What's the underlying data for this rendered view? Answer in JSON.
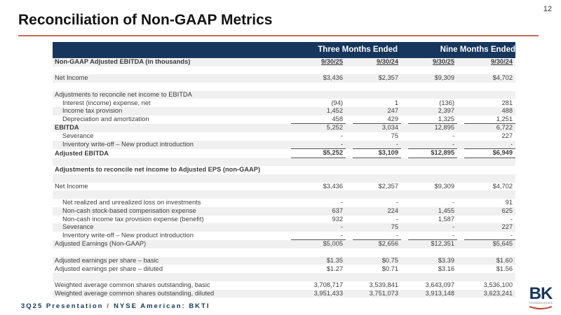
{
  "slide": {
    "page_number": "12",
    "title": "Reconciliation of Non-GAAP Metrics"
  },
  "table": {
    "group_headers": [
      {
        "label": "Three Months Ended"
      },
      {
        "label": "Nine Months Ended"
      }
    ],
    "column_dates": [
      "9/30/25",
      "9/30/24",
      "9/30/25",
      "9/30/24"
    ],
    "rows": [
      {
        "label": "Non-GAAP Adjusted EBITDA (in thousands)",
        "values": [
          "9/30/25",
          "9/30/24",
          "9/30/25",
          "9/30/24"
        ],
        "cls": "bold dates"
      },
      {
        "label": "",
        "values": [
          "",
          "",
          "",
          ""
        ],
        "cls": ""
      },
      {
        "label": "Net Income",
        "values": [
          "$3,436",
          "$2,357",
          "$9,309",
          "$4,702"
        ],
        "cls": ""
      },
      {
        "label": "",
        "values": [
          "",
          "",
          "",
          ""
        ],
        "cls": ""
      },
      {
        "label": "Adjustments to reconcile net income to EBITDA",
        "values": [
          "",
          "",
          "",
          ""
        ],
        "cls": ""
      },
      {
        "label": "Interest (income) expense, net",
        "values": [
          "(94)",
          "1",
          "(136)",
          "281"
        ],
        "cls": "indent"
      },
      {
        "label": "Income tax provision",
        "values": [
          "1,452",
          "247",
          "2,397",
          "488"
        ],
        "cls": "indent"
      },
      {
        "label": "Depreciation and amortization",
        "values": [
          "458",
          "429",
          "1,325",
          "1,251"
        ],
        "cls": "indent sum"
      },
      {
        "label": "EBITDA",
        "values": [
          "5,252",
          "3,034",
          "12,895",
          "6,722"
        ],
        "cls": "boldlabel"
      },
      {
        "label": "Severance",
        "values": [
          "-",
          "75",
          "-",
          "227"
        ],
        "cls": "indent"
      },
      {
        "label": "Inventory write-off – New product introduction",
        "values": [
          "-",
          "-",
          "-",
          "-"
        ],
        "cls": "indent sum"
      },
      {
        "label": "Adjusted EBITDA",
        "values": [
          "$5,252",
          "$3,109",
          "$12,895",
          "$6,949"
        ],
        "cls": "bold sum"
      },
      {
        "label": "",
        "values": [
          "",
          "",
          "",
          ""
        ],
        "cls": ""
      },
      {
        "label": "Adjustments to reconcile net income to Adjusted EPS (non-GAAP)",
        "values": [
          "",
          "",
          "",
          ""
        ],
        "cls": "boldlabel"
      },
      {
        "label": "",
        "values": [
          "",
          "",
          "",
          ""
        ],
        "cls": ""
      },
      {
        "label": "Net Income",
        "values": [
          "$3,436",
          "$2,357",
          "$9,309",
          "$4,702"
        ],
        "cls": ""
      },
      {
        "label": "",
        "values": [
          "",
          "",
          "",
          ""
        ],
        "cls": ""
      },
      {
        "label": "Net realized and unrealized loss on investments",
        "values": [
          "-",
          "-",
          "-",
          "91"
        ],
        "cls": "indent"
      },
      {
        "label": "Non-cash stock-based compensation expense",
        "values": [
          "637",
          "224",
          "1,455",
          "625"
        ],
        "cls": "indent"
      },
      {
        "label": "Non-cash income tax provision expense (benefit)",
        "values": [
          "932",
          "-",
          "1,587",
          "-"
        ],
        "cls": "indent"
      },
      {
        "label": "Severance",
        "values": [
          "-",
          "75",
          "-",
          "227"
        ],
        "cls": "indent"
      },
      {
        "label": "Inventory write-off – New product introduction",
        "values": [
          "-",
          "-",
          "-",
          "-"
        ],
        "cls": "indent sum"
      },
      {
        "label": "Adjusted Earnings (Non-GAAP)",
        "values": [
          "$5,005",
          "$2,656",
          "$12,351",
          "$5,645"
        ],
        "cls": ""
      },
      {
        "label": "",
        "values": [
          "",
          "",
          "",
          ""
        ],
        "cls": ""
      },
      {
        "label": "Adjusted earnings per share – basic",
        "values": [
          "$1.35",
          "$0.75",
          "$3.39",
          "$1.60"
        ],
        "cls": ""
      },
      {
        "label": "Adjusted earnings per share – diluted",
        "values": [
          "$1.27",
          "$0.71",
          "$3.16",
          "$1.56"
        ],
        "cls": ""
      },
      {
        "label": "",
        "values": [
          "",
          "",
          "",
          ""
        ],
        "cls": ""
      },
      {
        "label": "Weighted average common shares outstanding, basic",
        "values": [
          "3,708,717",
          "3,539,841",
          "3,643,097",
          "3,536,100"
        ],
        "cls": ""
      },
      {
        "label": "Weighted average common shares outstanding, diluted",
        "values": [
          "3,951,433",
          "3,751,073",
          "3,913,148",
          "3,623,241"
        ],
        "cls": ""
      }
    ]
  },
  "footer": {
    "presentation": "3Q25 Presentation",
    "separator": "/",
    "listing": "NYSE American: BKTI"
  },
  "logo": {
    "primary": "BK",
    "secondary": "TECHNOLOGIES"
  },
  "colors": {
    "header_bg": "#17365d",
    "row_stripe": "#f0f0f0",
    "title_rule": "#c76a5c",
    "accent_red": "#c0392b",
    "footer_text": "#17365d"
  }
}
